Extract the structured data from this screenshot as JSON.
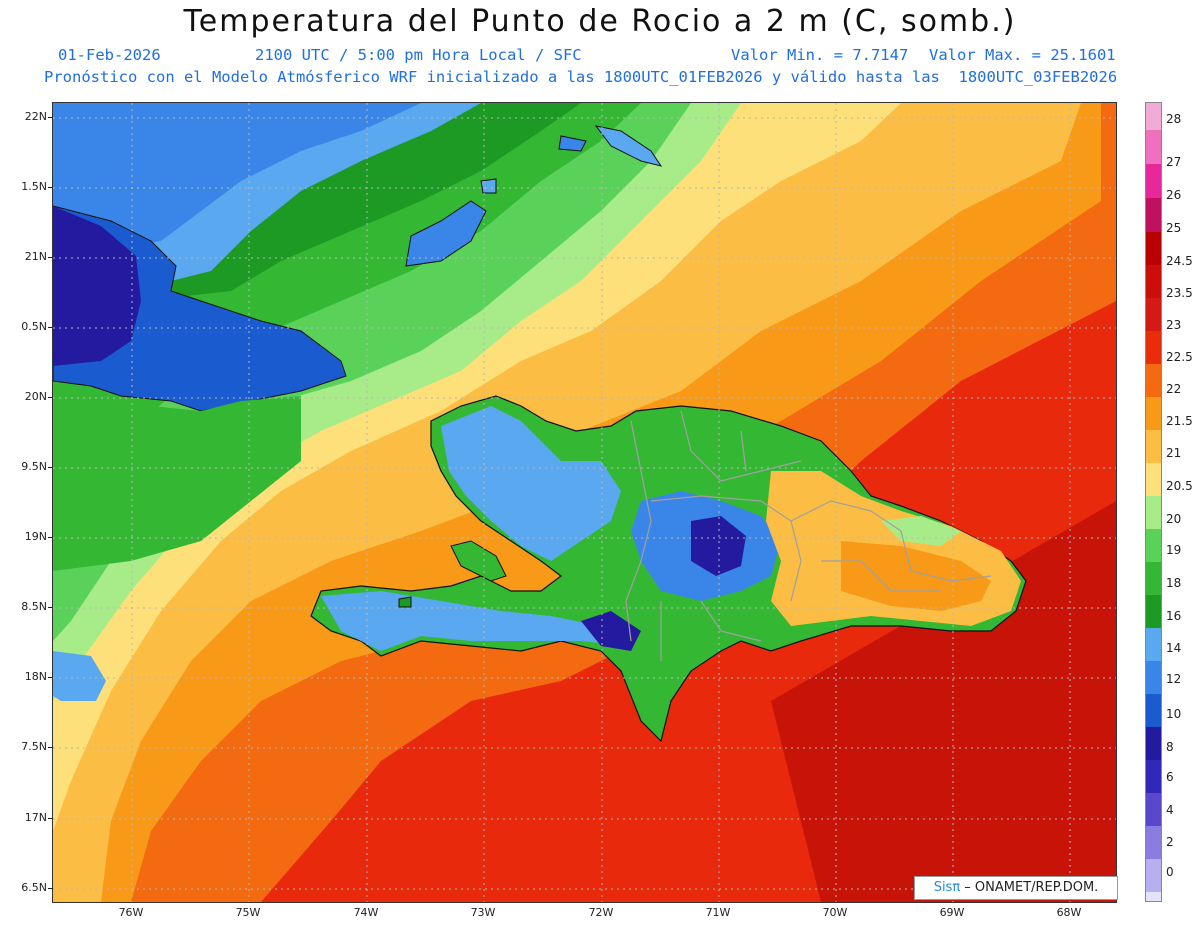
{
  "header": {
    "title": "Temperatura del Punto de Rocio a 2 m (C, somb.)",
    "date": "01-Feb-2026",
    "time": "2100 UTC / 5:00 pm Hora Local / SFC",
    "min": "Valor Min. = 7.7147",
    "max": "Valor Max. = 25.1601",
    "model_line": "Pronóstico con el Modelo Atmósferico WRF inicializado a las 1800UTC_01FEB2026 y válido hasta las  1800UTC_03FEB2026"
  },
  "axes": {
    "lat_ticks": [
      "22N",
      "1.5N",
      "21N",
      "0.5N",
      "20N",
      "9.5N",
      "19N",
      "8.5N",
      "18N",
      "7.5N",
      "17N",
      "6.5N"
    ],
    "lon_ticks": [
      "76W",
      "75W",
      "74W",
      "73W",
      "72W",
      "71W",
      "70W",
      "69W",
      "68W"
    ]
  },
  "legend": {
    "labels": [
      "28",
      "27",
      "26",
      "25",
      "24.5",
      "23.5",
      "23",
      "22.5",
      "22",
      "21.5",
      "21",
      "20.5",
      "20",
      "19",
      "18",
      "16",
      "14",
      "12",
      "10",
      "8",
      "6",
      "4",
      "2",
      "0"
    ],
    "colors": {
      "c28": "#f2aad6",
      "c27": "#f070c0",
      "c26": "#e8289a",
      "c25": "#c01060",
      "c245": "#b80000",
      "c235": "#d41a14",
      "c23": "#e82c0c",
      "c225": "#f46a10",
      "c22": "#f89a18",
      "c215": "#fbbd44",
      "c21": "#fde07a",
      "c205": "#a8ec8a",
      "c20": "#5ad25a",
      "c19": "#34b834",
      "c18": "#1c9a24",
      "c16": "#5aa8f0",
      "c14": "#3a86e8",
      "c12": "#1a5cd0",
      "c10": "#241aa0",
      "c8": "#3028b8",
      "c6": "#5a48cc",
      "c4": "#8a7ce0",
      "c2": "#b8b0ee",
      "c0": "#e2e2f8"
    }
  },
  "credit": {
    "sis": "Sisπ",
    "org": " – ONAMET/REP.DOM."
  }
}
